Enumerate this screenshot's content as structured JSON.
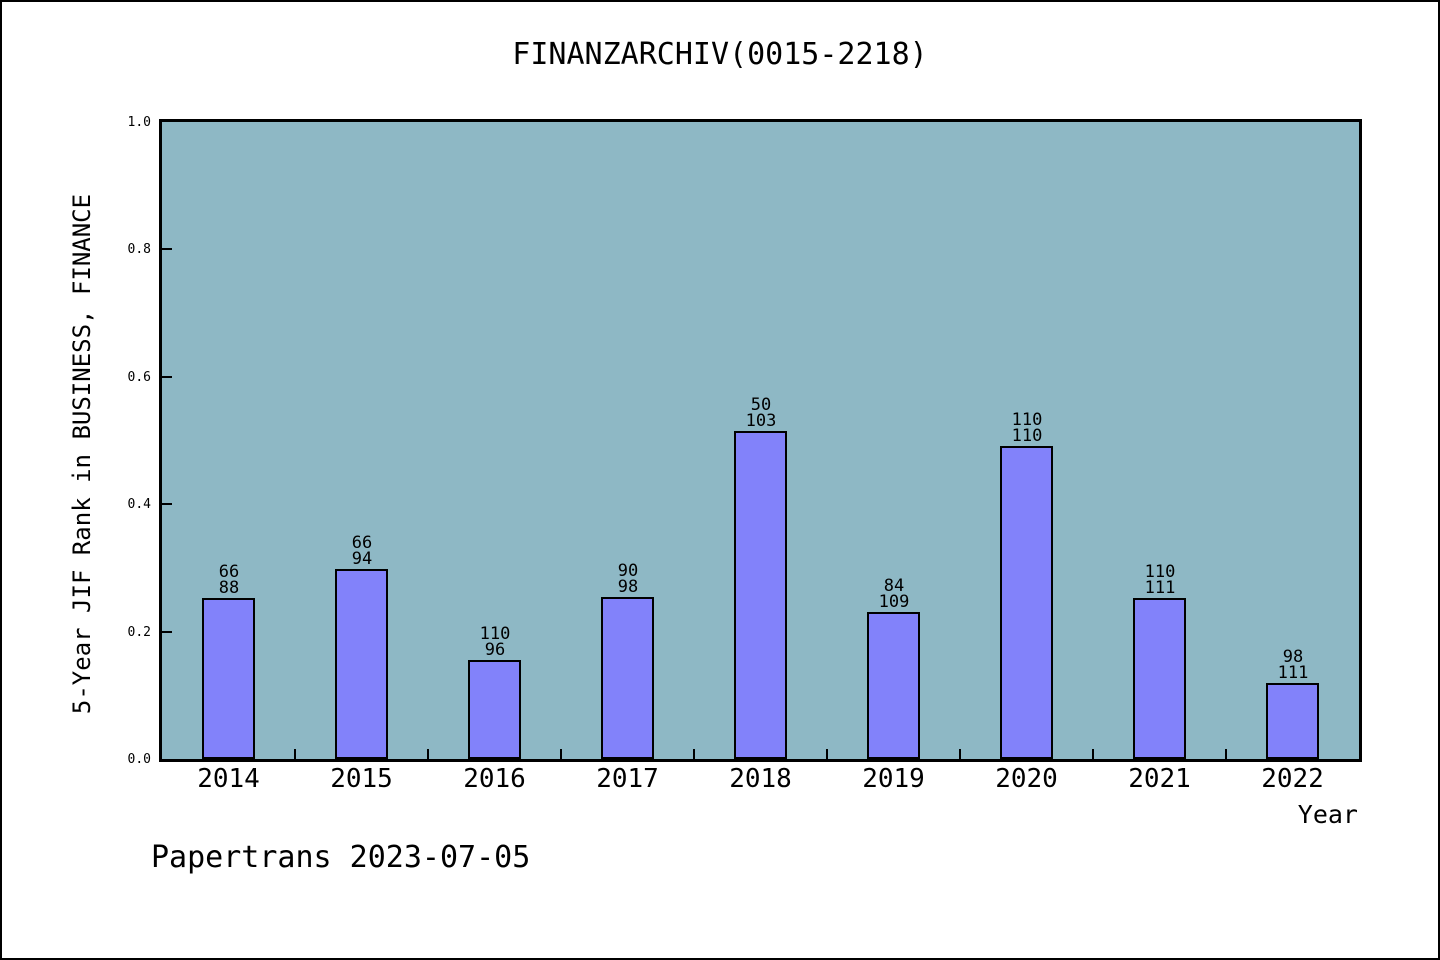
{
  "footer": "Papertrans 2023-07-05",
  "colors": {
    "plot_background": "#8EB8C5",
    "bar_fill": "#8282FA",
    "bar_border": "#000000",
    "axis": "#000000",
    "outer_background": "#FFFFFF",
    "text": "#000000"
  },
  "chart_data": {
    "type": "bar",
    "title": "FINANZARCHIV(0015-2218)",
    "xlabel": "Year",
    "ylabel": "5-Year JIF Rank in BUSINESS, FINANCE",
    "categories": [
      "2014",
      "2015",
      "2016",
      "2017",
      "2018",
      "2019",
      "2020",
      "2021",
      "2022"
    ],
    "values": [
      0.252,
      0.298,
      0.155,
      0.255,
      0.515,
      0.23,
      0.492,
      0.253,
      0.119
    ],
    "bar_labels": [
      [
        "66",
        "88"
      ],
      [
        "66",
        "94"
      ],
      [
        "110",
        "96"
      ],
      [
        "90",
        "98"
      ],
      [
        "50",
        "103"
      ],
      [
        "84",
        "109"
      ],
      [
        "110",
        "110"
      ],
      [
        "110",
        "111"
      ],
      [
        "98",
        "111"
      ]
    ],
    "ylim": [
      0,
      1
    ],
    "yticks": [
      0,
      0.2,
      0.4,
      0.6,
      0.8,
      1
    ],
    "xlim": [
      2013.5,
      2022.5
    ],
    "grid": false,
    "legend": null
  }
}
